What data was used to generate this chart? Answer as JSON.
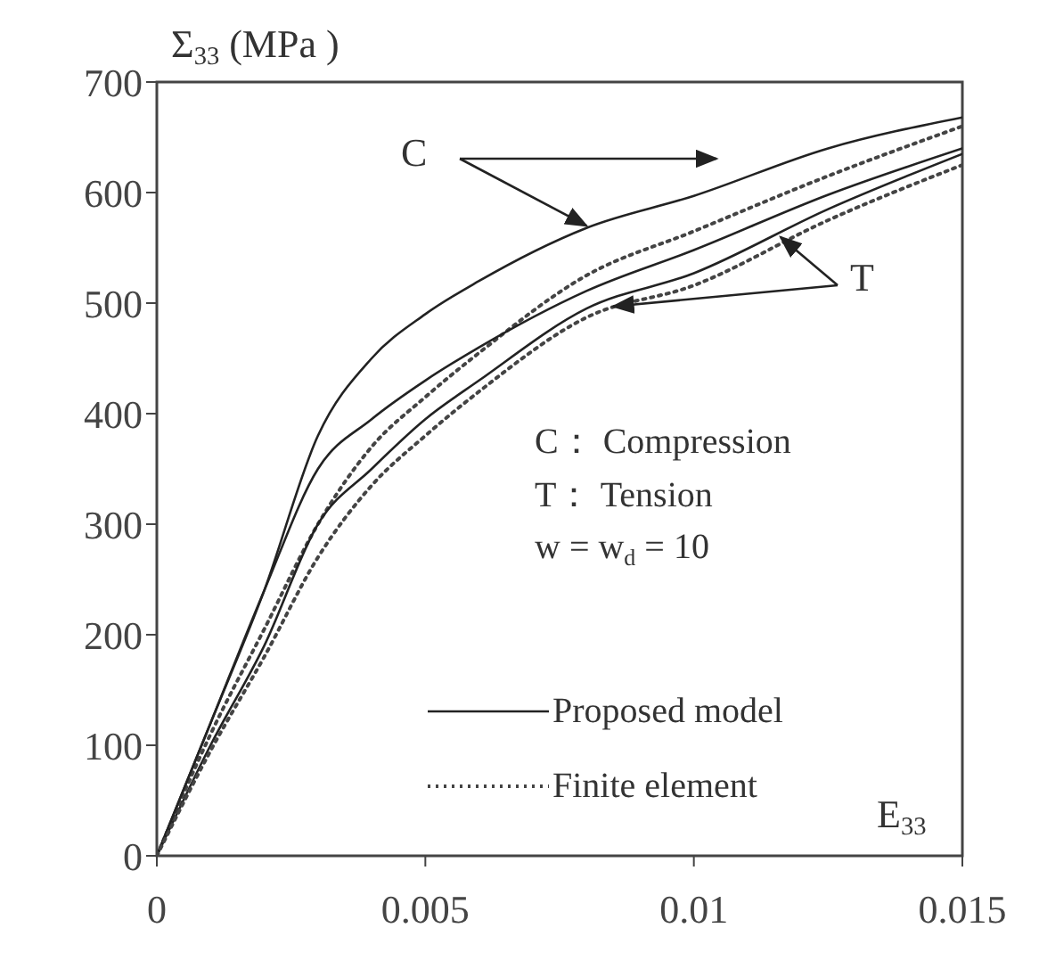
{
  "chart_data": {
    "type": "line",
    "ylabel": "Σ$_{33}$ (MPa )",
    "xlabel": "E$_{33}$",
    "x": [
      0,
      0.001,
      0.002,
      0.003,
      0.004,
      0.005,
      0.006,
      0.008,
      0.01,
      0.0125,
      0.015
    ],
    "series": [
      {
        "name": "Proposed model",
        "color": "#222222",
        "line_style": "solid",
        "values": [
          0,
          120,
          240,
          380,
          450,
          490,
          520,
          568,
          597,
          640,
          668
        ]
      },
      {
        "name": "Finite element",
        "color": "#444444",
        "line_style": "dotted",
        "values": [
          0,
          110,
          205,
          300,
          370,
          415,
          455,
          525,
          565,
          615,
          660
        ]
      },
      {
        "color": "#222222",
        "line_style": "solid",
        "values": [
          0,
          120,
          240,
          350,
          395,
          430,
          460,
          511,
          548,
          598,
          640
        ]
      },
      {
        "color": "#222222",
        "line_style": "solid",
        "values": [
          0,
          100,
          190,
          300,
          350,
          395,
          430,
          495,
          527,
          585,
          635
        ]
      },
      {
        "color": "#444444",
        "line_style": "dotted",
        "values": [
          0,
          95,
          180,
          270,
          335,
          380,
          420,
          487,
          516,
          575,
          625
        ]
      }
    ],
    "xlim": [
      0,
      0.015
    ],
    "xticks": [
      0,
      0.005,
      0.01,
      0.015
    ],
    "ylim": [
      0,
      700
    ],
    "yticks": [
      0,
      100,
      200,
      300,
      400,
      500,
      600,
      700
    ],
    "grid": false,
    "marker": "none",
    "legend": "bottom right",
    "annotations": [
      {
        "text": "C",
        "x": 0.008,
        "y": 570
      },
      {
        "text": "T",
        "x": 0.0085,
        "y": 497
      },
      "C： Compression",
      "T： Tension",
      "w = w$_{d}$ = 10"
    ]
  }
}
